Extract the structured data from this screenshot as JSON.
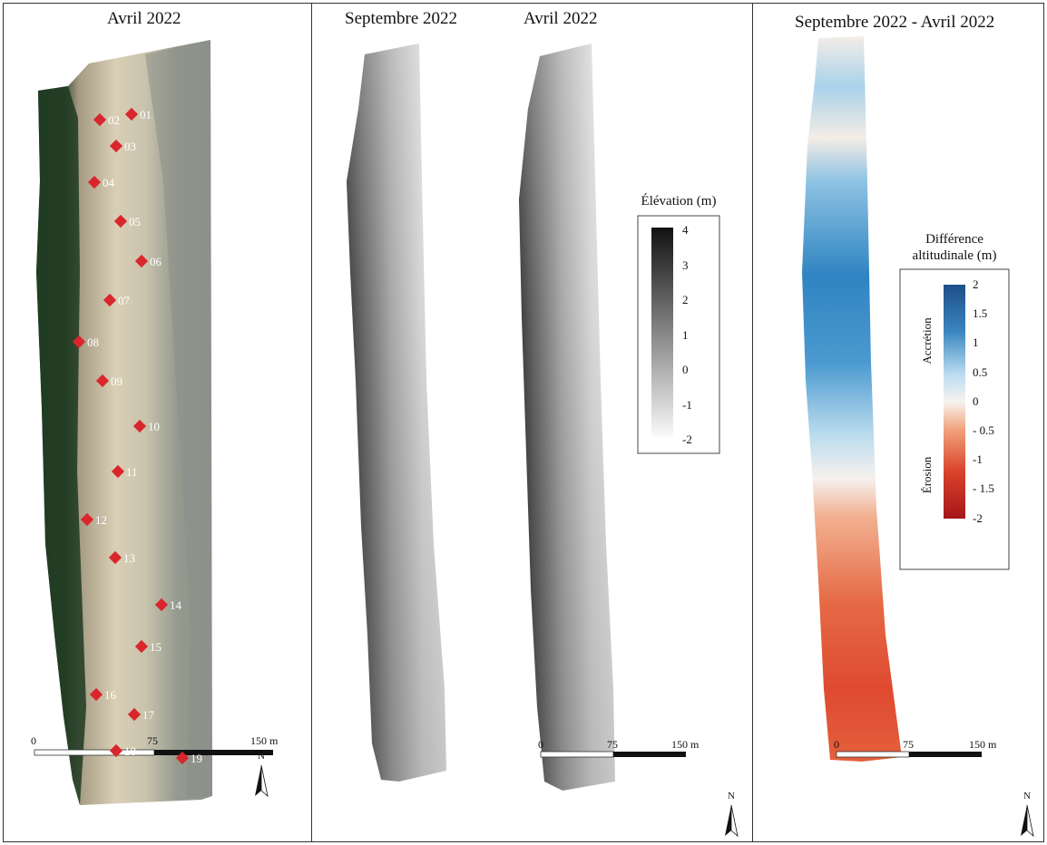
{
  "panels": {
    "p1_title": "Avril 2022",
    "p2_title_a": "Septembre 2022",
    "p2_title_b": "Avril 2022",
    "p3_title": "Septembre 2022 - Avril 2022"
  },
  "markers": [
    {
      "label": "01"
    },
    {
      "label": "02"
    },
    {
      "label": "03"
    },
    {
      "label": "04"
    },
    {
      "label": "05"
    },
    {
      "label": "06"
    },
    {
      "label": "07"
    },
    {
      "label": "08"
    },
    {
      "label": "09"
    },
    {
      "label": "10"
    },
    {
      "label": "11"
    },
    {
      "label": "12"
    },
    {
      "label": "13"
    },
    {
      "label": "14"
    },
    {
      "label": "15"
    },
    {
      "label": "16"
    },
    {
      "label": "17"
    },
    {
      "label": "18"
    },
    {
      "label": "19"
    }
  ],
  "marker_color": "#d9262c",
  "elevation_legend": {
    "title": "Élévation (m)",
    "ticks": [
      "4",
      "3",
      "2",
      "1",
      "0",
      "-1",
      "-2"
    ]
  },
  "difference_legend": {
    "title_line1": "Différence",
    "title_line2": "altitudinale (m)",
    "ticks": [
      "2",
      "1.5",
      "1",
      "0.5",
      "0",
      "- 0.5",
      "-1",
      "- 1.5",
      "-2"
    ],
    "accretion_label": "Accrétion",
    "erosion_label": "Érosion",
    "colors": [
      "#1f4e87",
      "#4a90c4",
      "#b9dbef",
      "#f7f3f0",
      "#f1a27c",
      "#d9432a",
      "#a5161b"
    ]
  },
  "scalebar": {
    "labels": [
      "0",
      "75",
      "150 m"
    ]
  },
  "north_label": "N"
}
